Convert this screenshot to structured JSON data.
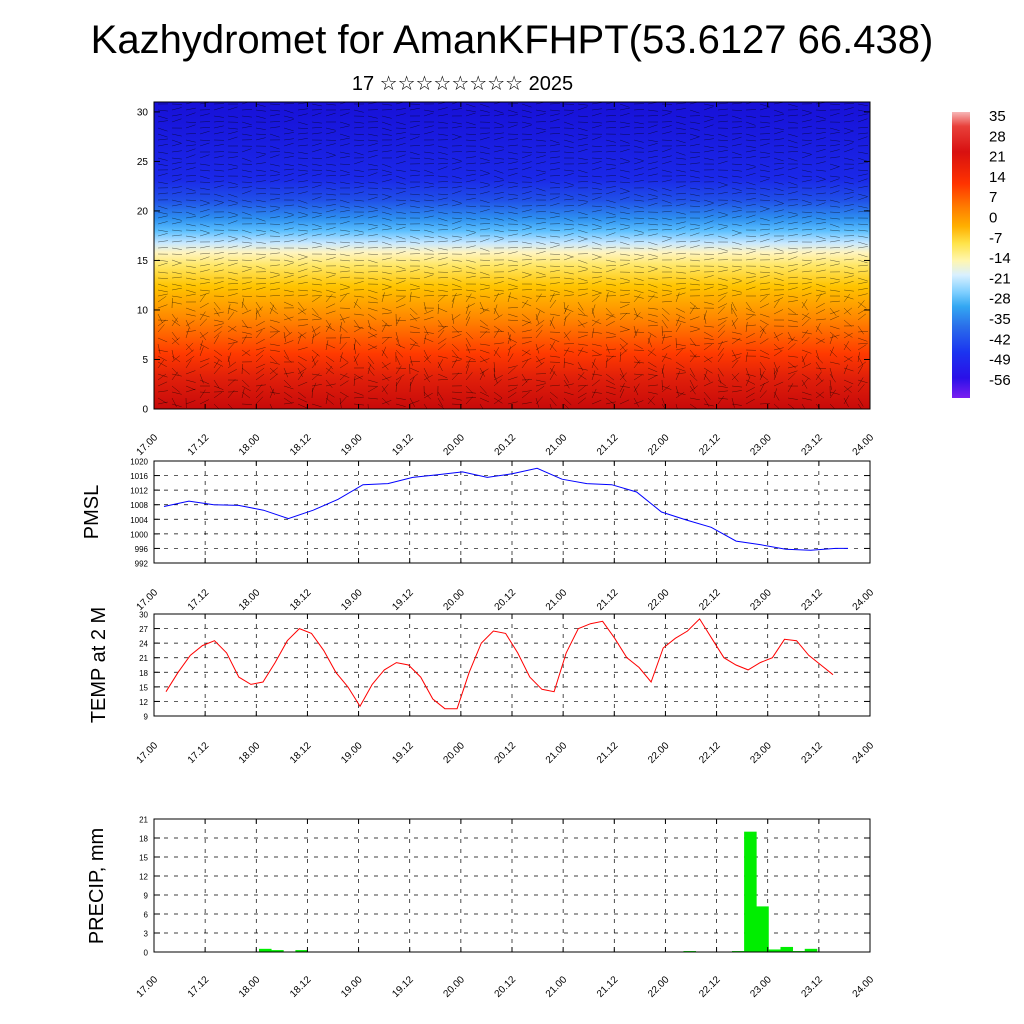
{
  "title": "Kazhydromet for AmanKFHPT(53.6127 66.438)",
  "subtitle": "17 ☆☆☆☆☆☆☆☆ 2025",
  "x_tick_labels": [
    "17.00",
    "17.12",
    "18.00",
    "18.12",
    "19.00",
    "19.12",
    "20.00",
    "20.12",
    "21.00",
    "21.12",
    "22.00",
    "22.12",
    "23.00",
    "23.12",
    "24.00"
  ],
  "chart_data": [
    {
      "type": "heatmap",
      "description_axis": "height",
      "y_ticks": [
        0,
        5,
        10,
        15,
        20,
        25,
        30
      ],
      "ylim": [
        0,
        31
      ],
      "xlim": [
        0,
        168
      ],
      "colorbar": {
        "labels": [
          "35",
          "28",
          "21",
          "14",
          "7",
          "0",
          "-7",
          "-14",
          "-21",
          "-28",
          "-35",
          "-42",
          "-49",
          "-56"
        ]
      },
      "temperature_profile": [
        {
          "height": 0,
          "value": 28
        },
        {
          "height": 5,
          "value": 21
        },
        {
          "height": 10,
          "value": 10
        },
        {
          "height": 15,
          "value": 0
        },
        {
          "height": 18,
          "value": -21
        },
        {
          "height": 20,
          "value": -35
        },
        {
          "height": 23,
          "value": -49
        },
        {
          "height": 31,
          "value": -56
        }
      ]
    },
    {
      "type": "line",
      "ylabel": "PMSL",
      "y_ticks": [
        992,
        996,
        1000,
        1004,
        1008,
        1012,
        1016,
        1020
      ],
      "ylim": [
        992,
        1020
      ],
      "xlim": [
        0,
        168
      ],
      "color": "#0000ff",
      "series": [
        {
          "x": [
            0,
            6,
            12,
            18,
            24,
            30,
            36,
            42,
            48,
            54,
            60,
            66,
            72,
            78,
            84,
            90,
            96,
            102,
            108,
            114,
            120,
            126,
            132,
            138,
            144,
            150,
            156,
            162,
            165
          ],
          "values": [
            1007.5,
            1009.0,
            1008.0,
            1007.8,
            1006.5,
            1004.2,
            1006.5,
            1009.5,
            1013.5,
            1013.8,
            1015.5,
            1016.2,
            1017.0,
            1015.5,
            1016.5,
            1018.0,
            1015.0,
            1013.8,
            1013.5,
            1011.5,
            1006.0,
            1003.8,
            1001.8,
            998.0,
            997.0,
            995.8,
            995.5,
            996.0,
            996.0
          ]
        }
      ]
    },
    {
      "type": "line",
      "ylabel": "TEMP at 2 M",
      "y_ticks": [
        9,
        12,
        15,
        18,
        21,
        24,
        27,
        30
      ],
      "ylim": [
        9,
        30
      ],
      "xlim": [
        0,
        168
      ],
      "color": "#ff0000",
      "series": [
        {
          "x": [
            0,
            3,
            6,
            9,
            12,
            15,
            18,
            21,
            24,
            27,
            30,
            33,
            36,
            39,
            42,
            45,
            48,
            51,
            54,
            57,
            60,
            63,
            66,
            69,
            72,
            75,
            78,
            81,
            84,
            87,
            90,
            93,
            96,
            99,
            102,
            105,
            108,
            111,
            114,
            117,
            120,
            123,
            126,
            129,
            132,
            135,
            138,
            141,
            144,
            147,
            150,
            153,
            156,
            159,
            162,
            165
          ],
          "values": [
            14,
            18,
            21.5,
            23.5,
            24.5,
            22,
            17,
            15.5,
            16,
            20,
            24.5,
            27,
            26,
            22.5,
            18,
            15,
            11,
            15.5,
            18.5,
            20,
            19.5,
            17,
            12.5,
            10.5,
            10.5,
            18,
            24,
            26.5,
            26,
            22,
            17,
            14.5,
            14,
            22,
            27,
            28,
            28.5,
            25,
            21,
            19,
            16,
            23,
            25,
            26.5,
            29,
            25,
            21,
            19.5,
            18.5,
            20,
            21,
            24.8,
            24.5,
            21.5,
            19.5,
            17.5
          ]
        }
      ]
    },
    {
      "type": "bar",
      "ylabel": "PRECIP, mm",
      "y_ticks": [
        0,
        3,
        6,
        9,
        12,
        15,
        18,
        21
      ],
      "ylim": [
        0,
        21
      ],
      "xlim": [
        0,
        168
      ],
      "color": "#00ee00",
      "bin_hours": 3,
      "bars": [
        {
          "x": 24,
          "value": 0.5
        },
        {
          "x": 27,
          "value": 0.3
        },
        {
          "x": 33,
          "value": 0.3
        },
        {
          "x": 129,
          "value": 0.15
        },
        {
          "x": 141,
          "value": 0.15
        },
        {
          "x": 144,
          "value": 19
        },
        {
          "x": 147,
          "value": 7.2
        },
        {
          "x": 150,
          "value": 0.4
        },
        {
          "x": 153,
          "value": 0.8
        },
        {
          "x": 156,
          "value": 0.15
        },
        {
          "x": 159,
          "value": 0.5
        }
      ]
    }
  ]
}
